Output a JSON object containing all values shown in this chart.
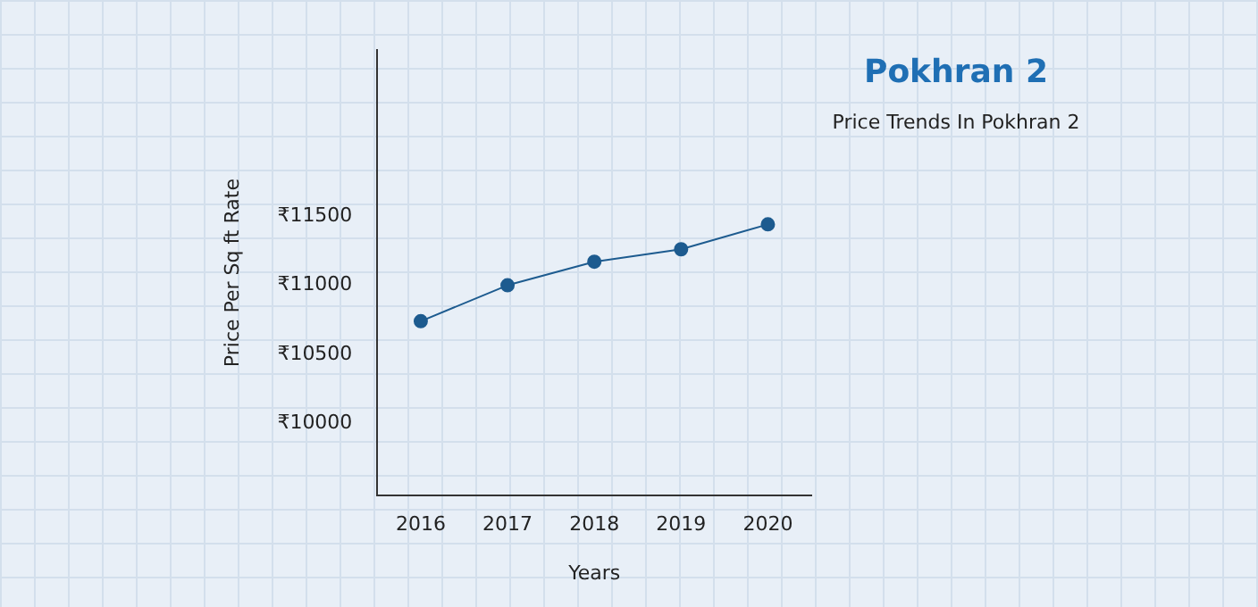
{
  "chart_data": {
    "type": "line",
    "title": "Pokhran 2",
    "subtitle": "Price Trends In Pokhran 2",
    "xlabel": "Years",
    "ylabel": "Price Per Sq ft Rate",
    "categories": [
      "2016",
      "2017",
      "2018",
      "2019",
      "2020"
    ],
    "series": [
      {
        "color": "#1d5b8f",
        "values": [
          10740,
          11000,
          11170,
          11260,
          11440
        ]
      }
    ],
    "ylim": [
      9480,
      12700
    ],
    "yticks": [
      {
        "value": 10000,
        "label": "₹10000"
      },
      {
        "value": 10500,
        "label": "₹10500"
      },
      {
        "value": 11000,
        "label": "₹11000"
      },
      {
        "value": 11500,
        "label": "₹11500"
      }
    ],
    "marker": "circle",
    "line_style": "solid",
    "grid": false,
    "legend": false
  }
}
